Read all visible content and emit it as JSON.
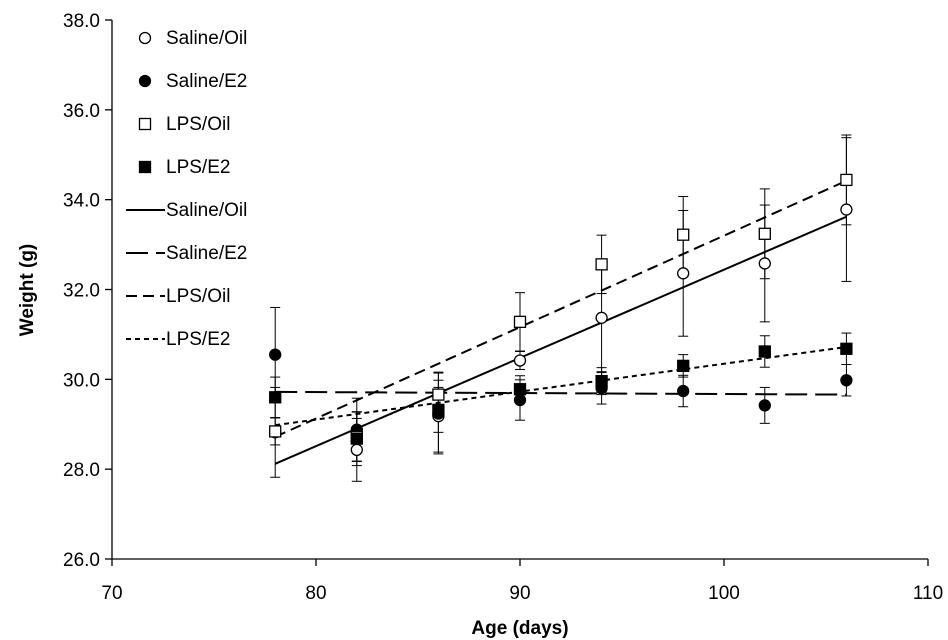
{
  "chart_data": {
    "type": "scatter",
    "title": "",
    "xlabel": "Age (days)",
    "ylabel": "Weight (g)",
    "xlim": [
      70,
      110
    ],
    "ylim": [
      26.0,
      38.0
    ],
    "x_ticks": [
      "70",
      "80",
      "90",
      "100",
      "110"
    ],
    "y_ticks": [
      "26.0",
      "28.0",
      "30.0",
      "32.0",
      "34.0",
      "36.0",
      "38.0"
    ],
    "grid": false,
    "legend_position": "top-left",
    "x": [
      78,
      82,
      86,
      90,
      94,
      98,
      102,
      106
    ],
    "series": [
      {
        "name": "Saline/Oil",
        "marker": "open-circle",
        "values": [
          28.82,
          28.43,
          29.18,
          30.42,
          31.37,
          32.36,
          32.58,
          33.78
        ],
        "error": [
          1.0,
          0.7,
          0.8,
          0.2,
          1.2,
          1.4,
          1.3,
          1.6
        ]
      },
      {
        "name": "Saline/E2",
        "marker": "filled-circle",
        "values": [
          30.55,
          28.88,
          29.24,
          29.54,
          29.8,
          29.74,
          29.42,
          29.98
        ],
        "error": [
          1.05,
          0.7,
          0.9,
          0.45,
          0.35,
          0.35,
          0.4,
          0.35
        ]
      },
      {
        "name": "LPS/Oil",
        "marker": "open-square",
        "values": [
          28.84,
          28.72,
          29.66,
          31.28,
          32.56,
          33.22,
          33.24,
          34.44
        ],
        "error": [
          0.3,
          0.55,
          0.5,
          0.65,
          0.65,
          0.85,
          1.0,
          1.0
        ]
      },
      {
        "name": "LPS/E2",
        "marker": "filled-square",
        "values": [
          29.6,
          28.68,
          29.32,
          29.78,
          29.96,
          30.3,
          30.62,
          30.68
        ],
        "error": [
          0.45,
          0.6,
          0.5,
          0.3,
          0.3,
          0.25,
          0.35,
          0.35
        ]
      }
    ],
    "trendlines": [
      {
        "name": "Saline/Oil",
        "style": "solid",
        "x": [
          78,
          106
        ],
        "y": [
          28.12,
          33.62
        ]
      },
      {
        "name": "Saline/E2",
        "style": "long-dash",
        "x": [
          78,
          106
        ],
        "y": [
          29.72,
          29.66
        ]
      },
      {
        "name": "LPS/Oil",
        "style": "dash",
        "x": [
          78,
          106
        ],
        "y": [
          28.72,
          34.42
        ]
      },
      {
        "name": "LPS/E2",
        "style": "short-dash",
        "x": [
          78,
          106
        ],
        "y": [
          28.98,
          30.72
        ]
      }
    ]
  }
}
